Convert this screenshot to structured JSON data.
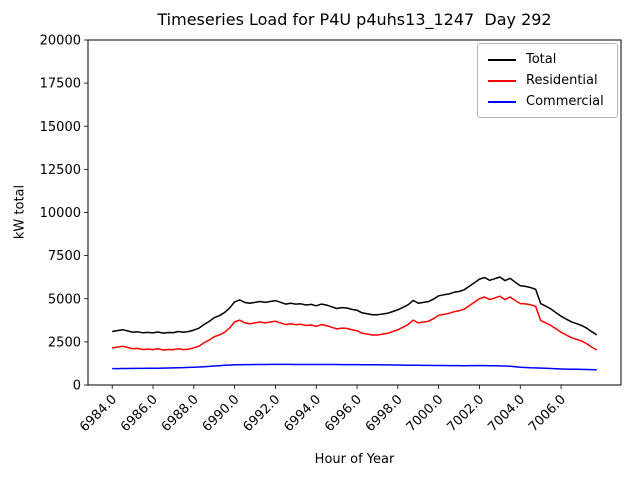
{
  "title": "Timeseries Load for P4U p4uhs13_1247  Day 292",
  "background": "#ffffff",
  "chart_data": {
    "type": "line",
    "title": "Timeseries Load for P4U p4uhs13_1247  Day 292",
    "xlabel": "Hour of Year",
    "ylabel": "kW total",
    "xlim": [
      6982.8125,
      7008.9375
    ],
    "ylim": [
      0,
      20000
    ],
    "grid": false,
    "legend_position": "upper right",
    "x_start": 6984.0,
    "x_step": 0.25,
    "xticks": [
      6984,
      6986,
      6988,
      6990,
      6992,
      6994,
      6996,
      6998,
      7000,
      7002,
      7004,
      7006
    ],
    "xtick_labels": [
      "6984.0",
      "6986.0",
      "6988.0",
      "6990.0",
      "6992.0",
      "6994.0",
      "6996.0",
      "6998.0",
      "7000.0",
      "7002.0",
      "7004.0",
      "7006.0"
    ],
    "yticks": [
      0,
      2500,
      5000,
      7500,
      10000,
      12500,
      15000,
      17500,
      20000
    ],
    "ytick_labels": [
      "0",
      "2500",
      "5000",
      "7500",
      "10000",
      "12500",
      "15000",
      "17500",
      "20000"
    ],
    "series": [
      {
        "name": "Total",
        "color": "#000000",
        "values": [
          3100,
          3152,
          3205,
          3137,
          3060,
          3082,
          3025,
          3048,
          3020,
          3075,
          3010,
          3045,
          3040,
          3100,
          3060,
          3100,
          3180,
          3295,
          3510,
          3680,
          3900,
          4020,
          4190,
          4455,
          4820,
          4935,
          4780,
          4735,
          4790,
          4840,
          4790,
          4842,
          4893,
          4793,
          4692,
          4742,
          4691,
          4710,
          4640,
          4670,
          4590,
          4689,
          4638,
          4537,
          4436,
          4485,
          4464,
          4382,
          4330,
          4178,
          4126,
          4073,
          4070,
          4117,
          4164,
          4262,
          4360,
          4505,
          4650,
          4905,
          4740,
          4787,
          4834,
          4982,
          5170,
          5228,
          5276,
          5374,
          5422,
          5521,
          5722,
          5925,
          6138,
          6225,
          6070,
          6165,
          6260,
          6050,
          6185,
          5960,
          5750,
          5715,
          5650,
          5550,
          4720,
          4568,
          4405,
          4192,
          3990,
          3822,
          3665,
          3560,
          3455,
          3298,
          3090,
          2910
        ]
      },
      {
        "name": "Residential",
        "color": "#ff0000",
        "values": [
          2150,
          2200,
          2250,
          2180,
          2100,
          2120,
          2060,
          2080,
          2050,
          2100,
          2030,
          2060,
          2050,
          2100,
          2050,
          2080,
          2150,
          2250,
          2450,
          2600,
          2800,
          2900,
          3050,
          3300,
          3650,
          3760,
          3600,
          3550,
          3600,
          3650,
          3600,
          3650,
          3700,
          3600,
          3500,
          3550,
          3500,
          3520,
          3450,
          3480,
          3400,
          3500,
          3450,
          3350,
          3250,
          3300,
          3280,
          3200,
          3150,
          3000,
          2950,
          2900,
          2900,
          2950,
          3000,
          3100,
          3200,
          3350,
          3500,
          3760,
          3600,
          3650,
          3700,
          3850,
          4040,
          4100,
          4150,
          4250,
          4300,
          4400,
          4600,
          4800,
          5010,
          5100,
          4950,
          5050,
          5150,
          4950,
          5100,
          4900,
          4720,
          4700,
          4650,
          4560,
          3740,
          3600,
          3450,
          3250,
          3060,
          2900,
          2750,
          2650,
          2550,
          2400,
          2200,
          2030
        ]
      },
      {
        "name": "Commercial",
        "color": "#0000ff",
        "values": [
          950,
          952,
          955,
          957,
          960,
          962,
          965,
          968,
          970,
          975,
          980,
          985,
          990,
          1000,
          1010,
          1020,
          1030,
          1045,
          1060,
          1080,
          1100,
          1120,
          1140,
          1155,
          1170,
          1175,
          1180,
          1185,
          1190,
          1190,
          1190,
          1192,
          1193,
          1193,
          1192,
          1192,
          1191,
          1190,
          1190,
          1190,
          1190,
          1189,
          1188,
          1187,
          1186,
          1185,
          1184,
          1182,
          1180,
          1178,
          1176,
          1173,
          1170,
          1167,
          1164,
          1162,
          1160,
          1155,
          1150,
          1145,
          1140,
          1137,
          1134,
          1132,
          1130,
          1128,
          1126,
          1124,
          1122,
          1121,
          1122,
          1125,
          1128,
          1125,
          1120,
          1115,
          1110,
          1100,
          1085,
          1060,
          1030,
          1015,
          1000,
          990,
          980,
          968,
          955,
          942,
          930,
          922,
          915,
          910,
          905,
          898,
          890,
          880
        ]
      }
    ]
  }
}
